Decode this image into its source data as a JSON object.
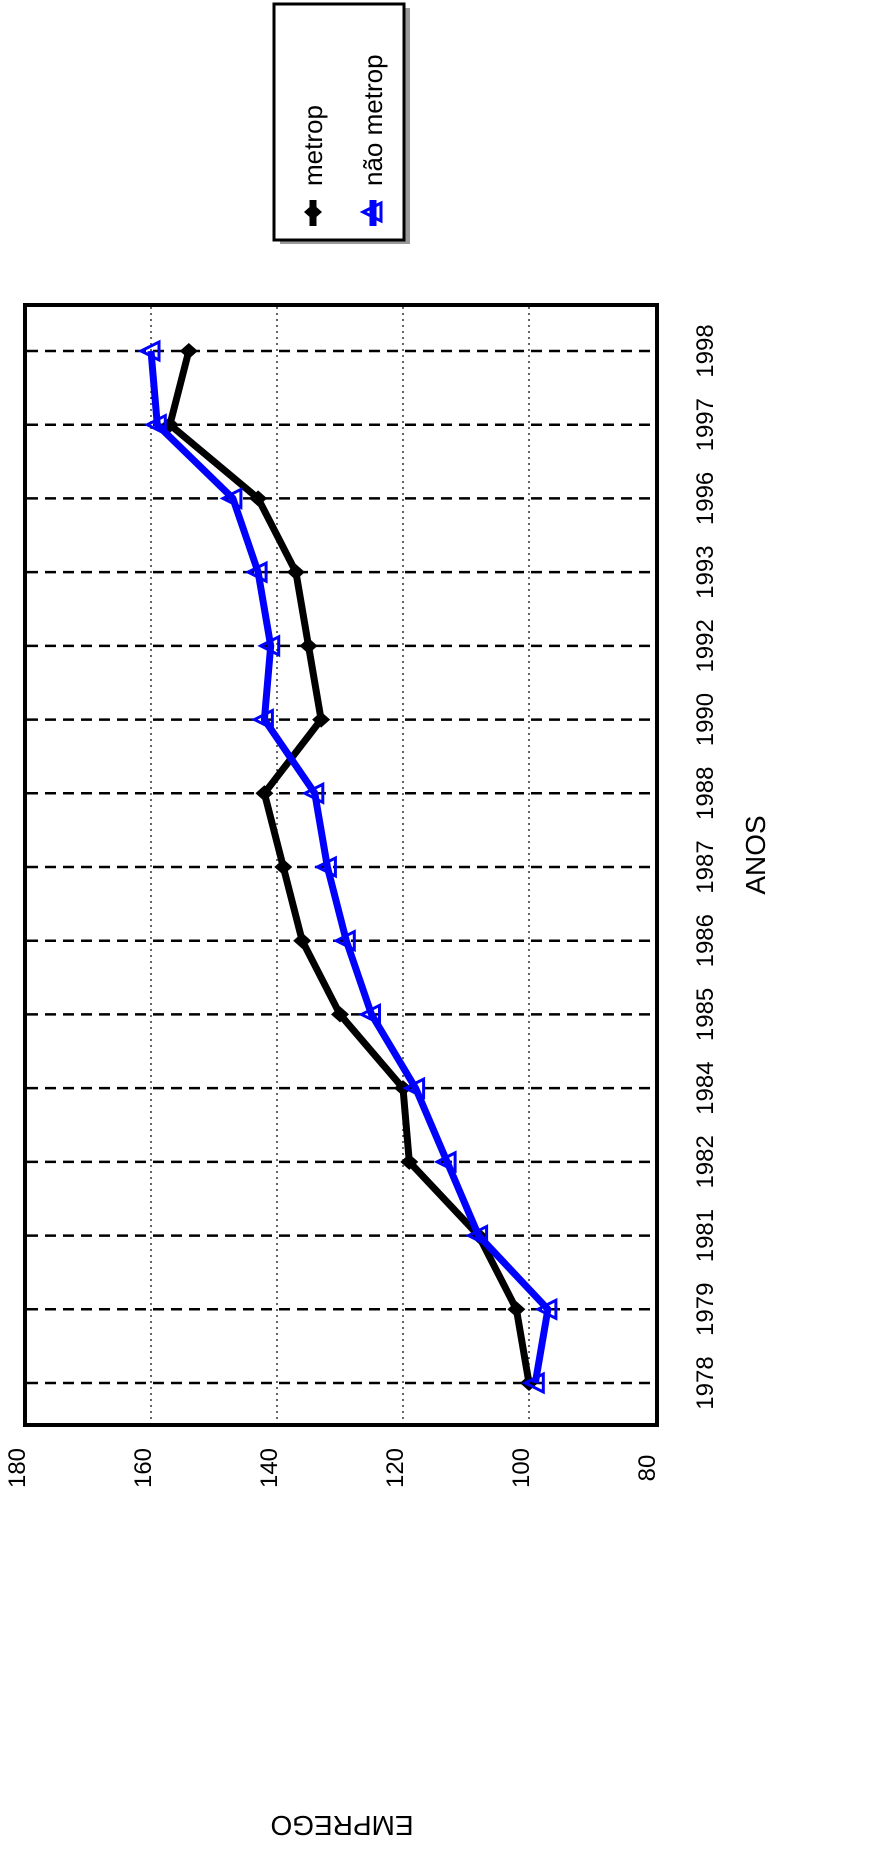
{
  "chart_data": {
    "type": "line",
    "xlabel": "ANOS",
    "ylabel": "EMPREGO",
    "categories": [
      "1978",
      "1979",
      "1981",
      "1982",
      "1984",
      "1985",
      "1986",
      "1987",
      "1988",
      "1990",
      "1992",
      "1993",
      "1996",
      "1997",
      "1998"
    ],
    "ylim": [
      80,
      180
    ],
    "yticks": [
      80,
      100,
      120,
      140,
      160,
      180
    ],
    "grid": true,
    "orientation": "rotated-90-clockwise",
    "legend_position": "top-right",
    "series": [
      {
        "name": "metrop",
        "color": "#000000",
        "marker": "diamond",
        "values": [
          100,
          102,
          108,
          119,
          120,
          130,
          136,
          139,
          142,
          133,
          135,
          137,
          143,
          157,
          154
        ]
      },
      {
        "name": "não metrop",
        "color": "#0000ff",
        "marker": "triangle",
        "values": [
          99,
          97,
          108,
          113,
          118,
          125,
          129,
          132,
          134,
          142,
          141,
          143,
          147,
          159,
          160
        ]
      }
    ]
  }
}
